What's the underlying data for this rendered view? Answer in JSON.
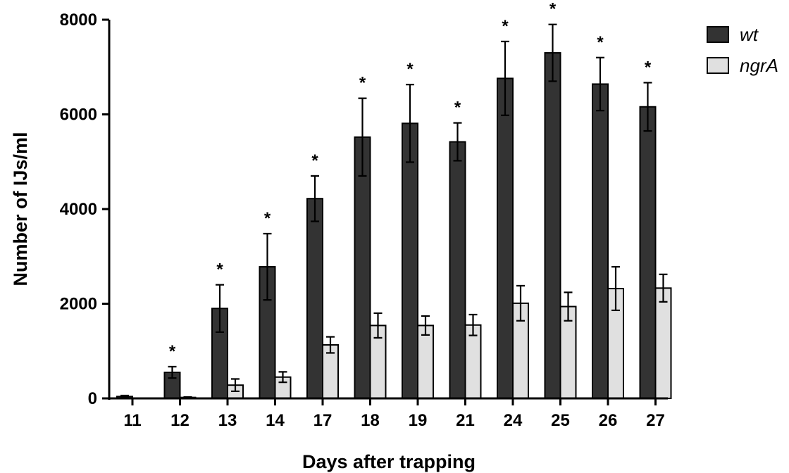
{
  "chart_data": {
    "type": "bar",
    "title": "",
    "xlabel": "Days after trapping",
    "ylabel": "Number of IJs/ml",
    "ylim": [
      0,
      8000
    ],
    "yticks": [
      0,
      2000,
      4000,
      6000,
      8000
    ],
    "categories": [
      "11",
      "12",
      "13",
      "14",
      "17",
      "18",
      "19",
      "21",
      "24",
      "25",
      "26",
      "27"
    ],
    "series": [
      {
        "name": "wt",
        "color": "#333333",
        "values": [
          40,
          550,
          1900,
          2780,
          4220,
          5520,
          5810,
          5420,
          6760,
          7300,
          6640,
          6160
        ],
        "errors": [
          20,
          120,
          500,
          700,
          480,
          820,
          820,
          400,
          780,
          600,
          560,
          510
        ]
      },
      {
        "name": "ngrA",
        "color": "#e0e0e0",
        "values": [
          0,
          20,
          280,
          450,
          1130,
          1540,
          1540,
          1550,
          2010,
          1940,
          2320,
          2330
        ],
        "errors": [
          0,
          10,
          130,
          110,
          170,
          260,
          200,
          220,
          370,
          300,
          460,
          290
        ]
      }
    ],
    "significance_marker": "*",
    "significant": [
      false,
      true,
      true,
      true,
      true,
      true,
      true,
      true,
      true,
      true,
      true,
      true
    ],
    "legend_position": "top-right",
    "grid": false
  }
}
